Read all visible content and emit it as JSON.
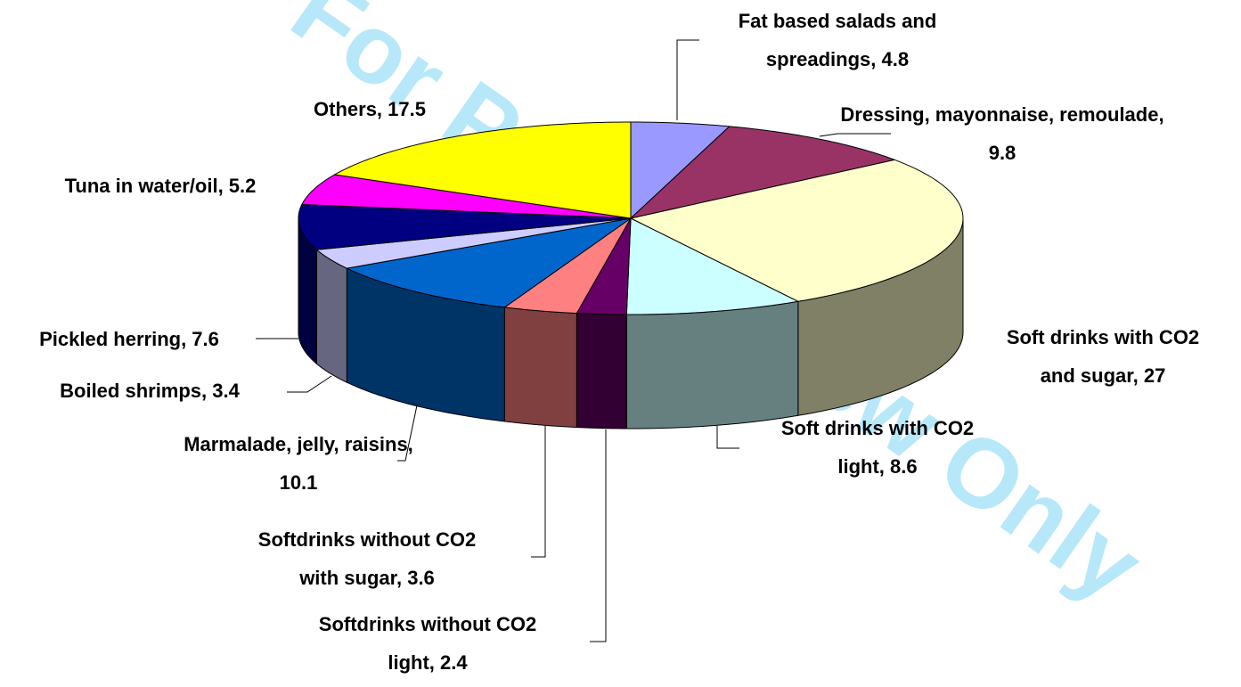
{
  "watermark": "For Peer Review Only",
  "chart_data": {
    "type": "pie3d",
    "values": [
      4.8,
      9.8,
      27,
      8.6,
      2.4,
      3.6,
      10.1,
      3.4,
      7.6,
      5.2,
      17.5
    ],
    "value_labels": [
      "Fat based salads and spreadings, 4.8",
      "Dressing, mayonnaise, remoulade, 9.8",
      "Soft drinks with CO2 and sugar, 27",
      "Soft drinks with CO2 light, 8.6",
      "Softdrinks without CO2 light, 2.4",
      "Softdrinks without CO2 with sugar, 3.6",
      "Marmalade, jelly, raisins, 10.1",
      "Boiled shrimps, 3.4",
      "Pickled herring, 7.6",
      "Tuna in water/oil, 5.2",
      "Others, 17.5"
    ],
    "colors": [
      "#9999ff",
      "#993366",
      "#ffffcc",
      "#ccffff",
      "#660066",
      "#ff8080",
      "#0066cc",
      "#ccccff",
      "#000080",
      "#ff00ff",
      "#ffff00"
    ]
  }
}
